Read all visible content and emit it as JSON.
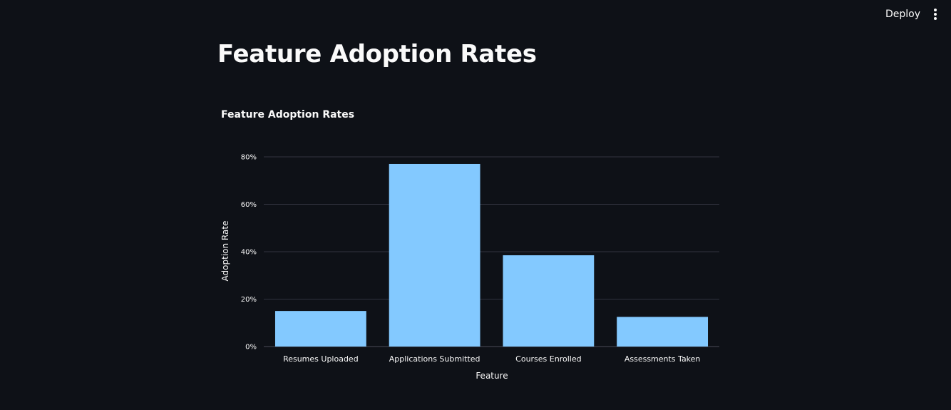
{
  "header": {
    "deploy_label": "Deploy",
    "menu_icon": "vertical-ellipsis-icon"
  },
  "page": {
    "title": "Feature Adoption Rates"
  },
  "colors": {
    "background": "#0e1117",
    "bar": "#83c9ff",
    "grid": "#31333f",
    "text": "#fafafa"
  },
  "chart_data": {
    "type": "bar",
    "title": "Feature Adoption Rates",
    "xlabel": "Feature",
    "ylabel": "Adoption Rate",
    "categories": [
      "Resumes Uploaded",
      "Applications Submitted",
      "Courses Enrolled",
      "Assessments Taken"
    ],
    "values": [
      0.15,
      0.77,
      0.385,
      0.125
    ],
    "ylim": [
      0,
      0.8
    ],
    "yticks": [
      0,
      0.2,
      0.4,
      0.6,
      0.8
    ],
    "ytick_labels": [
      "0%",
      "20%",
      "40%",
      "60%",
      "80%"
    ],
    "grid": true
  }
}
